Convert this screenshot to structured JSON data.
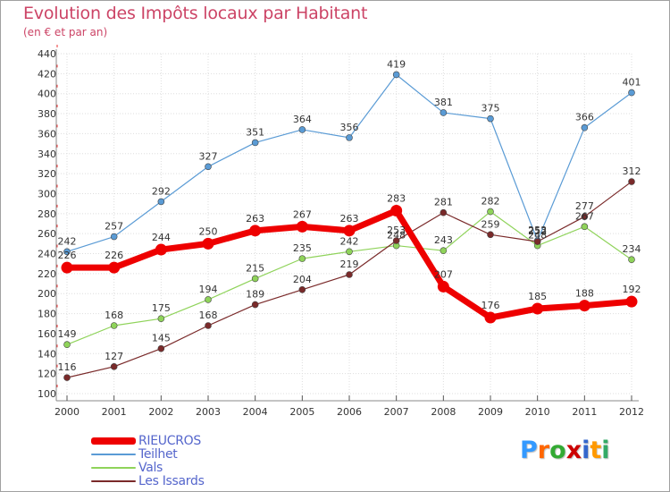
{
  "title": "Evolution des Impôts locaux par Habitant",
  "subtitle": "(en € et par an)",
  "logo": {
    "letters": [
      "P",
      "r",
      "o",
      "x",
      "i",
      "t",
      "i"
    ],
    "colors": [
      "#3399ff",
      "#ff6600",
      "#33aa33",
      "#cc0000",
      "#3366cc",
      "#ff9900",
      "#33aa66"
    ]
  },
  "chart_data": {
    "type": "line",
    "x": [
      "2000",
      "2001",
      "2002",
      "2003",
      "2004",
      "2005",
      "2006",
      "2007",
      "2008",
      "2009",
      "2010",
      "2011",
      "2012"
    ],
    "ylim": [
      100,
      440
    ],
    "yticks": [
      "100",
      "120",
      "140",
      "160",
      "180",
      "200",
      "220",
      "240",
      "260",
      "280",
      "300",
      "320",
      "340",
      "360",
      "380",
      "400",
      "420",
      "440"
    ],
    "series": [
      {
        "name": "RIEUCROS",
        "color": "#ee0000",
        "values": [
          226,
          226,
          244,
          250,
          263,
          267,
          263,
          283,
          207,
          176,
          185,
          188,
          192
        ]
      },
      {
        "name": "Teilhet",
        "color": "#5a9bd5",
        "values": [
          242,
          257,
          292,
          327,
          351,
          364,
          356,
          419,
          381,
          375,
          253,
          366,
          401
        ]
      },
      {
        "name": "Vals",
        "color": "#8fd35a",
        "values": [
          149,
          168,
          175,
          194,
          215,
          235,
          242,
          248,
          243,
          282,
          248,
          267,
          234
        ]
      },
      {
        "name": "Les Issards",
        "color": "#7a2a2a",
        "values": [
          116,
          127,
          145,
          168,
          189,
          204,
          219,
          253,
          281,
          259,
          252,
          277,
          312
        ]
      }
    ]
  }
}
